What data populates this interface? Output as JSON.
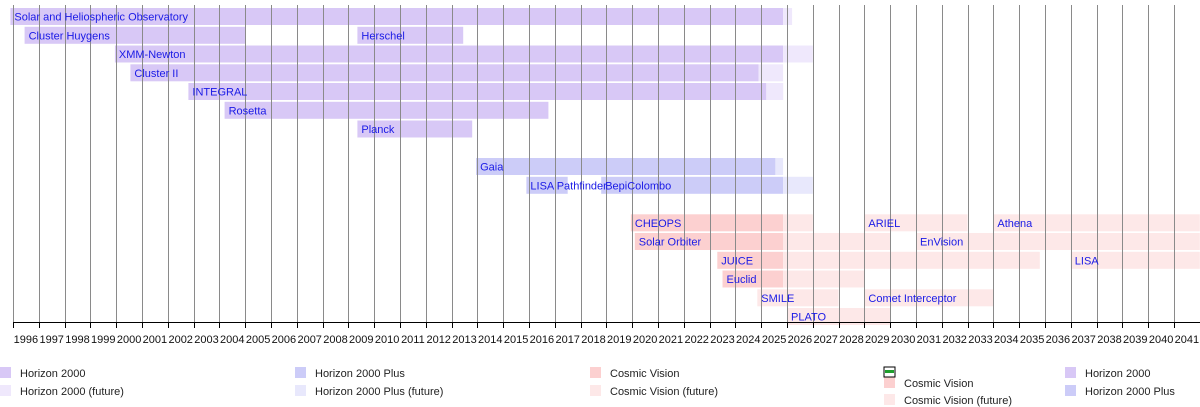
{
  "chart_data": {
    "type": "timeline",
    "xlim": [
      1996,
      2042
    ],
    "grid": true,
    "x_ticks": [
      "1996",
      "1997",
      "1998",
      "1999",
      "2000",
      "2001",
      "2002",
      "2003",
      "2004",
      "2005",
      "2006",
      "2007",
      "2008",
      "2009",
      "2010",
      "2011",
      "2012",
      "2013",
      "2014",
      "2015",
      "2016",
      "2017",
      "2018",
      "2019",
      "2020",
      "2021",
      "2022",
      "2023",
      "2024",
      "2025",
      "2026",
      "2027",
      "2028",
      "2029",
      "2030",
      "2031",
      "2032",
      "2033",
      "2034",
      "2035",
      "2036",
      "2037",
      "2038",
      "2039",
      "2040",
      "2041"
    ],
    "colors": {
      "Horizon 2000": "#d8c8f6",
      "Horizon 2000 (future)": "#efe8fc",
      "Horizon 2000 Plus": "#ccccf8",
      "Horizon 2000 Plus (future)": "#e8e8fc",
      "Cosmic Vision": "#fcd0d0",
      "Cosmic Vision (future)": "#fde8e8"
    },
    "bars": [
      {
        "row": 0,
        "label": "Solar and Heliospheric Observatory",
        "segments": [
          {
            "start": 1995.9,
            "end": 2025.85,
            "program": "Horizon 2000"
          },
          {
            "start": 2025.85,
            "end": 2026.2,
            "program": "Horizon 2000 (future)"
          }
        ]
      },
      {
        "row": 1,
        "label": "Cluster Huygens",
        "segments": [
          {
            "start": 1996.45,
            "end": 2005.0,
            "program": "Horizon 2000"
          }
        ]
      },
      {
        "row": 1,
        "label": "Herschel",
        "segments": [
          {
            "start": 2009.35,
            "end": 2013.45,
            "program": "Horizon 2000"
          }
        ]
      },
      {
        "row": 2,
        "label": "XMM-Newton",
        "segments": [
          {
            "start": 1999.95,
            "end": 2025.85,
            "program": "Horizon 2000"
          },
          {
            "start": 2025.85,
            "end": 2027.0,
            "program": "Horizon 2000 (future)"
          }
        ]
      },
      {
        "row": 3,
        "label": "Cluster II",
        "segments": [
          {
            "start": 2000.55,
            "end": 2024.9,
            "program": "Horizon 2000"
          },
          {
            "start": 2024.9,
            "end": 2025.85,
            "program": "Horizon 2000 (future)"
          }
        ]
      },
      {
        "row": 4,
        "label": "INTEGRAL",
        "segments": [
          {
            "start": 2002.8,
            "end": 2025.2,
            "program": "Horizon 2000"
          },
          {
            "start": 2025.2,
            "end": 2025.85,
            "program": "Horizon 2000 (future)"
          }
        ]
      },
      {
        "row": 5,
        "label": "Rosetta",
        "segments": [
          {
            "start": 2004.2,
            "end": 2016.75,
            "program": "Horizon 2000"
          }
        ]
      },
      {
        "row": 6,
        "label": "Planck",
        "segments": [
          {
            "start": 2009.35,
            "end": 2013.8,
            "program": "Horizon 2000"
          }
        ]
      },
      {
        "row": 8,
        "label": "Gaia",
        "segments": [
          {
            "start": 2013.95,
            "end": 2025.55,
            "program": "Horizon 2000 Plus"
          },
          {
            "start": 2025.55,
            "end": 2025.85,
            "program": "Horizon 2000 Plus (future)"
          }
        ]
      },
      {
        "row": 9,
        "label": "LISA Pathfinder",
        "segments": [
          {
            "start": 2015.9,
            "end": 2017.5,
            "program": "Horizon 2000 Plus"
          }
        ]
      },
      {
        "row": 9,
        "label": "BepiColombo",
        "segments": [
          {
            "start": 2018.8,
            "end": 2025.85,
            "program": "Horizon 2000 Plus"
          },
          {
            "start": 2025.85,
            "end": 2027.0,
            "program": "Horizon 2000 Plus (future)"
          }
        ]
      },
      {
        "row": 11,
        "label": "CHEOPS",
        "segments": [
          {
            "start": 2019.95,
            "end": 2025.85,
            "program": "Cosmic Vision"
          },
          {
            "start": 2025.85,
            "end": 2027.0,
            "program": "Cosmic Vision (future)"
          }
        ]
      },
      {
        "row": 11,
        "label": "ARIEL",
        "segments": [
          {
            "start": 2029.0,
            "end": 2033.0,
            "program": "Cosmic Vision (future)"
          }
        ]
      },
      {
        "row": 11,
        "label": "Athena",
        "segments": [
          {
            "start": 2034.0,
            "end": 2042.0,
            "program": "Cosmic Vision (future)"
          }
        ]
      },
      {
        "row": 12,
        "label": "Solar Orbiter",
        "segments": [
          {
            "start": 2020.1,
            "end": 2025.85,
            "program": "Cosmic Vision"
          },
          {
            "start": 2025.85,
            "end": 2030.0,
            "program": "Cosmic Vision (future)"
          }
        ]
      },
      {
        "row": 12,
        "label": "EnVision",
        "segments": [
          {
            "start": 2031.0,
            "end": 2042.0,
            "program": "Cosmic Vision (future)"
          }
        ]
      },
      {
        "row": 13,
        "label": "JUICE",
        "segments": [
          {
            "start": 2023.3,
            "end": 2025.85,
            "program": "Cosmic Vision"
          },
          {
            "start": 2025.85,
            "end": 2035.8,
            "program": "Cosmic Vision (future)"
          }
        ]
      },
      {
        "row": 13,
        "label": "LISA",
        "segments": [
          {
            "start": 2037.0,
            "end": 2042.0,
            "program": "Cosmic Vision (future)"
          }
        ]
      },
      {
        "row": 14,
        "label": "Euclid",
        "segments": [
          {
            "start": 2023.5,
            "end": 2025.85,
            "program": "Cosmic Vision"
          },
          {
            "start": 2025.85,
            "end": 2029.0,
            "program": "Cosmic Vision (future)"
          }
        ]
      },
      {
        "row": 15,
        "label": "SMILE",
        "segments": [
          {
            "start": 2024.85,
            "end": 2028.0,
            "program": "Cosmic Vision (future)"
          }
        ]
      },
      {
        "row": 15,
        "label": "Comet Interceptor",
        "segments": [
          {
            "start": 2029.0,
            "end": 2034.0,
            "program": "Cosmic Vision (future)"
          }
        ]
      },
      {
        "row": 16,
        "label": "PLATO",
        "segments": [
          {
            "start": 2026.0,
            "end": 2030.0,
            "program": "Cosmic Vision (future)"
          }
        ]
      }
    ],
    "legend_position": "bottom",
    "legend": [
      {
        "label": "Horizon 2000",
        "program": "Horizon 2000"
      },
      {
        "label": "Horizon 2000 (future)",
        "program": "Horizon 2000 (future)"
      },
      {
        "label": "Horizon 2000 Plus",
        "program": "Horizon 2000 Plus"
      },
      {
        "label": "Horizon 2000 Plus (future)",
        "program": "Horizon 2000 Plus (future)"
      },
      {
        "label": "Cosmic Vision",
        "program": "Cosmic Vision"
      },
      {
        "label": "Cosmic Vision (future)",
        "program": "Cosmic Vision (future)"
      },
      {
        "label": "Cosmic Vision",
        "program": "Cosmic Vision"
      },
      {
        "label": "Cosmic Vision (future)",
        "program": "Cosmic Vision (future)"
      },
      {
        "label": "Horizon 2000",
        "program": "Horizon 2000"
      },
      {
        "label": "Horizon 2000 Plus",
        "program": "Horizon 2000 Plus"
      }
    ]
  }
}
